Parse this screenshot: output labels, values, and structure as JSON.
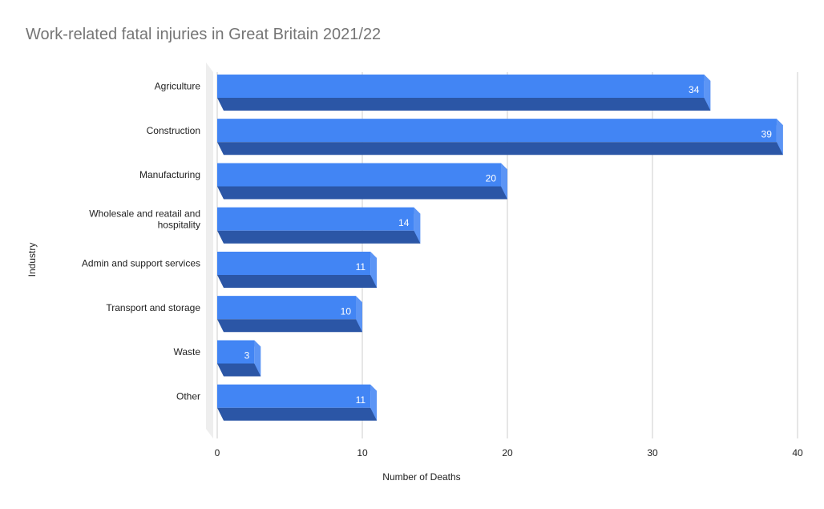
{
  "chart_data": {
    "type": "bar",
    "orientation": "horizontal",
    "style": "3d",
    "title": "Work-related fatal injuries in Great Britain 2021/22",
    "xlabel": "Number of Deaths",
    "ylabel": "Industry",
    "categories": [
      "Agriculture",
      "Construction",
      "Manufacturing",
      "Wholesale and reatail and hospitality",
      "Admin and support services",
      "Transport and storage",
      "Waste",
      "Other"
    ],
    "category_lines": [
      [
        "Agriculture"
      ],
      [
        "Construction"
      ],
      [
        "Manufacturing"
      ],
      [
        "Wholesale and reatail and",
        "hospitality"
      ],
      [
        "Admin and support services"
      ],
      [
        "Transport and storage"
      ],
      [
        "Waste"
      ],
      [
        "Other"
      ]
    ],
    "values": [
      34,
      39,
      20,
      14,
      11,
      10,
      3,
      11
    ],
    "xlim": [
      0,
      40
    ],
    "xticks": [
      0,
      10,
      20,
      30,
      40
    ],
    "grid": true,
    "legend": "none",
    "colors": {
      "bar_front": "#4285f4",
      "bar_side": "#2b56a6",
      "bar_top": "#5c95f5",
      "grid": "#cccccc",
      "wall": "#eeeeee"
    }
  }
}
